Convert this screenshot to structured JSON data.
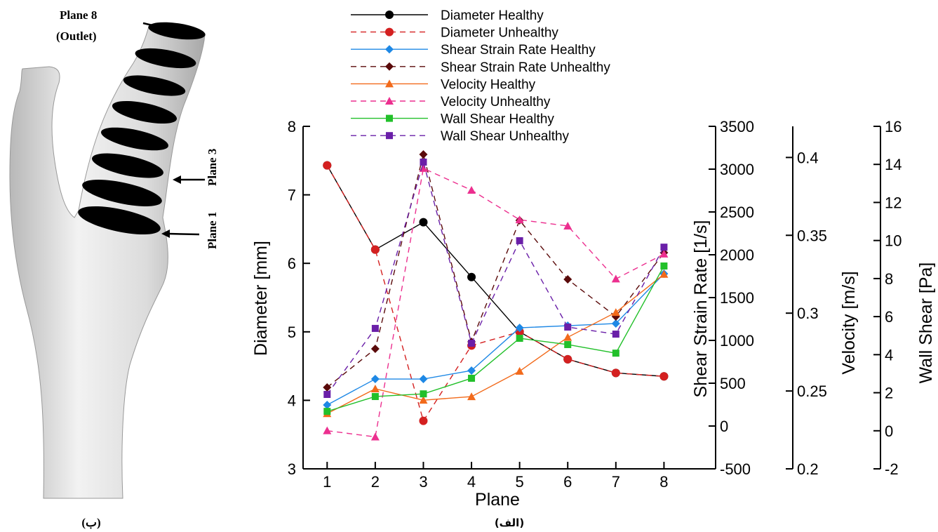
{
  "chart_data": {
    "type": "line",
    "xlabel": "Plane",
    "ylabel": "Diameter [mm]",
    "y2label": "Shear Strain Rate [1/s]",
    "y3label": "Velocity [m/s]",
    "y4label": "Wall Shear [Pa]",
    "caption": "(الف)",
    "x": [
      1,
      2,
      3,
      4,
      5,
      6,
      7,
      8
    ],
    "xlim": [
      0.5,
      9
    ],
    "xticks": [
      1,
      2,
      3,
      4,
      5,
      6,
      7,
      8
    ],
    "ylim": [
      3,
      8
    ],
    "yticks": [
      3,
      4,
      5,
      6,
      7,
      8
    ],
    "y2lim": [
      -500,
      3500
    ],
    "y2ticks": [
      -500,
      0,
      500,
      1000,
      1500,
      2000,
      2500,
      3000,
      3500
    ],
    "y3lim": [
      0.2,
      0.42
    ],
    "y3ticks": [
      0.2,
      0.25,
      0.3,
      0.35,
      0.4
    ],
    "y4lim": [
      -2,
      16
    ],
    "y4ticks": [
      -2,
      0,
      2,
      4,
      6,
      8,
      10,
      12,
      14,
      16
    ],
    "series": [
      {
        "name": "Diameter Healthy",
        "color": "#000000",
        "marker": "circle",
        "dashed": false,
        "axis": "y",
        "values": [
          7.43,
          6.2,
          6.6,
          5.8,
          5.0,
          4.6,
          4.4,
          4.35
        ]
      },
      {
        "name": "Diameter Unhealthy",
        "color": "#d42020",
        "marker": "circle",
        "dashed": true,
        "axis": "y",
        "values": [
          7.43,
          6.2,
          3.7,
          4.8,
          5.0,
          4.6,
          4.4,
          4.35
        ]
      },
      {
        "name": "Shear Strain Rate Healthy",
        "color": "#1e88e5",
        "marker": "diamond",
        "dashed": false,
        "axis": "y2",
        "values": [
          246,
          549,
          549,
          648,
          1147,
          1172,
          1197,
          1779
        ]
      },
      {
        "name": "Shear Strain Rate Unhealthy",
        "color": "#5a0a0a",
        "marker": "diamond",
        "dashed": true,
        "axis": "y2",
        "values": [
          451,
          902,
          3172,
          984,
          2402,
          1713,
          1279,
          2025
        ]
      },
      {
        "name": "Velocity Healthy",
        "color": "#f26a1b",
        "marker": "triangle",
        "dashed": false,
        "axis": "y3",
        "values": [
          0.2355,
          0.2514,
          0.2441,
          0.2464,
          0.2627,
          0.2845,
          0.3005,
          0.325
        ]
      },
      {
        "name": "Velocity Unhealthy",
        "color": "#ec2f8f",
        "marker": "triangle",
        "dashed": true,
        "axis": "y3",
        "values": [
          0.2245,
          0.2205,
          0.393,
          0.379,
          0.36,
          0.356,
          0.322,
          0.338
        ]
      },
      {
        "name": "Wall Shear Healthy",
        "color": "#22c02a",
        "marker": "square",
        "dashed": false,
        "axis": "y4",
        "values": [
          1.02,
          1.8,
          1.94,
          2.76,
          4.86,
          4.53,
          4.08,
          8.66
        ]
      },
      {
        "name": "Wall Shear Unhealthy",
        "color": "#6a1fa8",
        "marker": "square",
        "dashed": true,
        "axis": "y4",
        "values": [
          1.91,
          5.38,
          14.12,
          4.6,
          9.99,
          5.45,
          5.08,
          9.65
        ]
      }
    ]
  },
  "image_labels": {
    "plane_8": "Plane 8",
    "outlet": "(Outlet)",
    "plane_3": "Plane 3",
    "plane_1": "Plane 1",
    "caption": "(ب)"
  }
}
